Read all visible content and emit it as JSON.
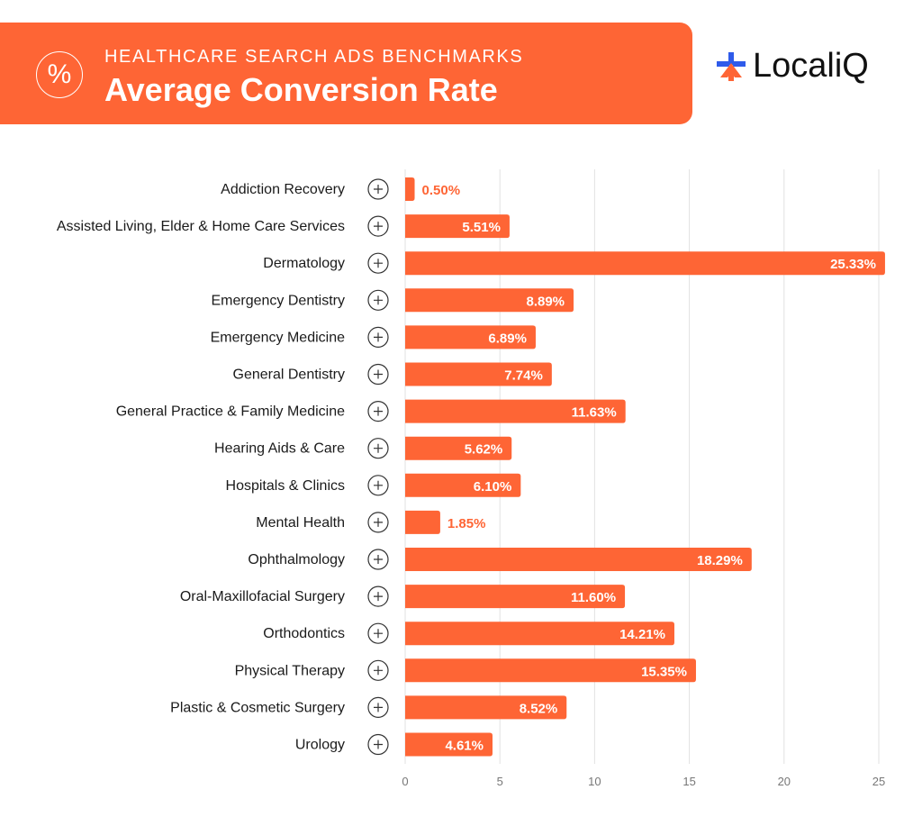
{
  "header": {
    "subtitle": "HEALTHCARE SEARCH ADS BENCHMARKS",
    "title": "Average Conversion Rate",
    "badge_symbol": "%",
    "logo_text": "LocaliQ"
  },
  "colors": {
    "accent": "#fe6535",
    "logo_blue": "#2f5bea",
    "grid": "#e2e2e2",
    "label": "#1a1a1a",
    "tick": "#777777"
  },
  "chart_data": {
    "type": "bar",
    "orientation": "horizontal",
    "title": "Average Conversion Rate",
    "categories": [
      "Addiction Recovery",
      "Assisted Living, Elder & Home Care Services",
      "Dermatology",
      "Emergency Dentistry",
      "Emergency Medicine",
      "General Dentistry",
      "General Practice & Family Medicine",
      "Hearing Aids & Care",
      "Hospitals & Clinics",
      "Mental Health",
      "Ophthalmology",
      "Oral-Maxillofacial Surgery",
      "Orthodontics",
      "Physical Therapy",
      "Plastic & Cosmetic Surgery",
      "Urology"
    ],
    "values": [
      0.5,
      5.51,
      25.33,
      8.89,
      6.89,
      7.74,
      11.63,
      5.62,
      6.1,
      1.85,
      18.29,
      11.6,
      14.21,
      15.35,
      8.52,
      4.61
    ],
    "data_labels": [
      "0.50%",
      "5.51%",
      "25.33%",
      "8.89%",
      "6.89%",
      "7.74%",
      "11.63%",
      "5.62%",
      "6.10%",
      "1.85%",
      "18.29%",
      "11.60%",
      "14.21%",
      "15.35%",
      "8.52%",
      "4.61%"
    ],
    "icons": [
      "syringe-icon",
      "home-care-icon",
      "dermatology-face-icon",
      "tooth-plus-icon",
      "rx-bottle-icon",
      "tooth-icon",
      "hand-heart-icon",
      "ear-icon",
      "hospital-icon",
      "head-heart-icon",
      "eye-plus-icon",
      "surgical-tools-icon",
      "braces-tooth-icon",
      "knee-icon",
      "cosmetic-syringe-icon",
      "kidney-icon"
    ],
    "xlim": [
      0,
      25
    ],
    "xticks": [
      0,
      5,
      10,
      15,
      20,
      25
    ],
    "grid": true,
    "xlabel": "",
    "ylabel": ""
  }
}
